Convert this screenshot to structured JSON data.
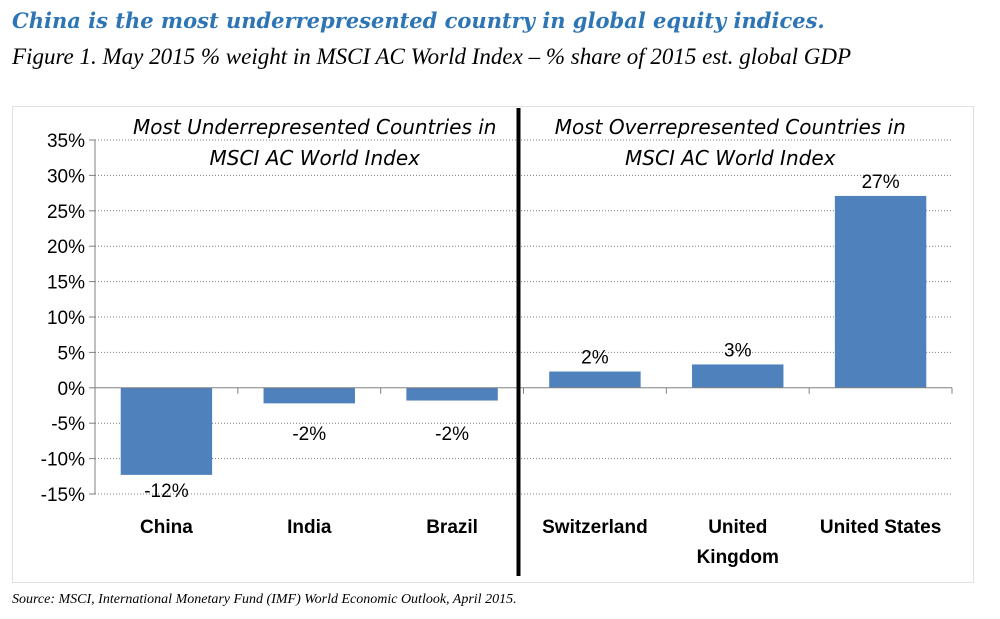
{
  "headline": "China is the most underrepresented country in global equity indices.",
  "subtitle": "Figure 1. May 2015 % weight in MSCI AC World Index – % share of 2015 est. global GDP",
  "source": "Source: MSCI, International Monetary Fund (IMF) World Economic Outlook, April 2015.",
  "chart_data": {
    "type": "bar",
    "categories": [
      [
        "China"
      ],
      [
        "India"
      ],
      [
        "Brazil"
      ],
      [
        "Switzerland"
      ],
      [
        "United",
        "Kingdom"
      ],
      [
        "United States"
      ]
    ],
    "values": [
      -12.3,
      -2.2,
      -1.8,
      2.3,
      3.3,
      27.1
    ],
    "data_labels": [
      "-12%",
      "-2%",
      "-2%",
      "2%",
      "3%",
      "27%"
    ],
    "ylim": [
      -15,
      35
    ],
    "yticks": [
      35,
      30,
      25,
      20,
      15,
      10,
      5,
      0,
      -5,
      -10,
      -15
    ],
    "ytick_labels": [
      "35%",
      "30%",
      "25%",
      "20%",
      "15%",
      "10%",
      "5%",
      "0%",
      "-5%",
      "-10%",
      "-15%"
    ],
    "grid": true,
    "bar_color": "#4f81bd",
    "divider_after_category": 3,
    "section_labels": [
      [
        "Most Underrepresented Countries in",
        "MSCI AC World Index"
      ],
      [
        "Most Overrepresented Countries in",
        "MSCI AC World Index"
      ]
    ]
  }
}
